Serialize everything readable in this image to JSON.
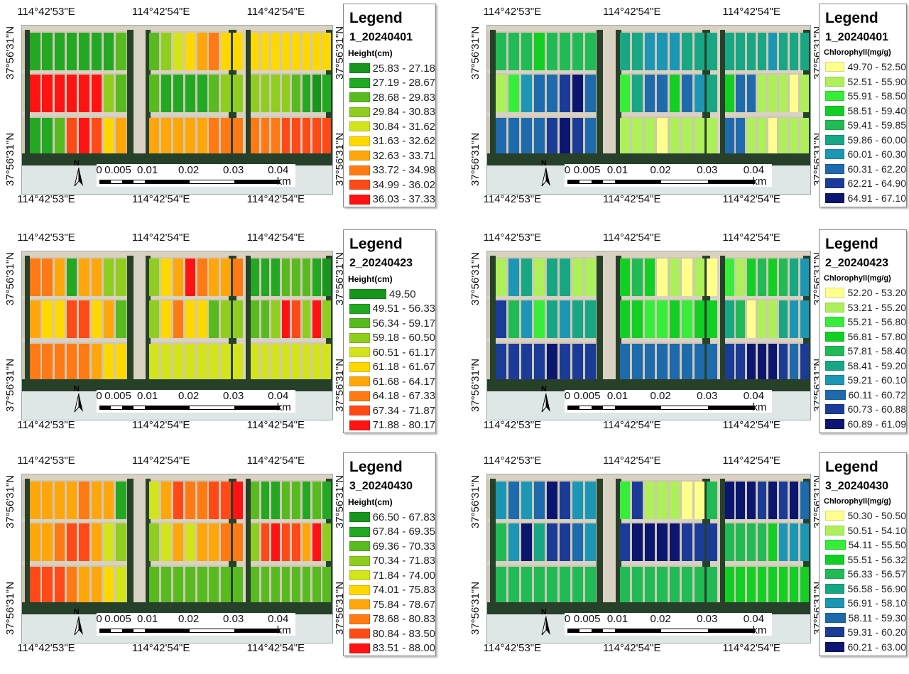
{
  "lon_labels": [
    "114°42'53\"E",
    "114°42'54\"E",
    "114°42'54\"E"
  ],
  "lat_label": "37°56'31\"N",
  "scale": {
    "labels": [
      "0",
      "0.005",
      "0.01",
      "0.02",
      "0.03",
      "0.04"
    ],
    "values": [
      0,
      0.005,
      0.01,
      0.02,
      0.03,
      0.04
    ],
    "unit": "km",
    "north": "N"
  },
  "colors": {
    "height": [
      "#17951c",
      "#22a823",
      "#57bb1f",
      "#8fce1e",
      "#d3e41a",
      "#ffd800",
      "#ffa60a",
      "#ff7a12",
      "#ff4a18",
      "#ff1212"
    ],
    "chlorophyll": [
      "#ffff8c",
      "#adf05a",
      "#36ee3a",
      "#12cf24",
      "#20bb55",
      "#17a785",
      "#1b97b5",
      "#1d6aad",
      "#1a3c98",
      "#0b1670"
    ]
  },
  "panels": [
    {
      "legend_title": "Legend",
      "date": "1_20240401",
      "variable": "Height(cm)",
      "scheme": "height",
      "classes": [
        "25.83 - 27.18",
        "27.19 - 28.67",
        "28.68 - 29.83",
        "29.84 - 30.83",
        "30.84 - 31.62",
        "31.63 - 32.62",
        "32.63 - 33.71",
        "33.72 - 34.98",
        "34.99 - 36.02",
        "36.03 - 37.33"
      ],
      "plot_classes": [
        [
          1,
          1,
          1,
          1,
          1,
          1,
          1,
          2,
          2,
          3,
          4,
          5,
          6,
          7,
          5,
          5,
          5,
          5,
          5,
          5,
          5,
          5,
          5,
          5
        ],
        [
          9,
          9,
          9,
          9,
          9,
          9,
          3,
          2,
          2,
          1,
          1,
          1,
          1,
          2,
          3,
          3,
          3,
          3,
          3,
          3,
          2,
          1,
          0,
          1
        ],
        [
          1,
          1,
          2,
          8,
          9,
          8,
          5,
          6,
          6,
          6,
          6,
          6,
          6,
          7,
          7,
          7,
          7,
          7,
          7,
          8,
          8,
          8,
          8,
          8
        ]
      ]
    },
    {
      "legend_title": "Legend",
      "date": "1_20240401",
      "variable": "Chlorophyll(mg/g)",
      "scheme": "chlorophyll",
      "classes": [
        "49.70 - 52.50",
        "52.51 - 55.90",
        "55.91 - 58.50",
        "58.51 - 59.40",
        "59.41 - 59.85",
        "59.86 - 60.00",
        "60.01 - 60.30",
        "60.31 - 62.20",
        "62.21 - 64.90",
        "64.91 - 67.10"
      ],
      "plot_classes": [
        [
          4,
          4,
          4,
          3,
          4,
          4,
          4,
          4,
          5,
          5,
          6,
          6,
          6,
          5,
          5,
          5,
          5,
          5,
          5,
          5,
          6,
          5,
          5,
          5
        ],
        [
          1,
          2,
          6,
          7,
          7,
          8,
          9,
          7,
          2,
          5,
          7,
          7,
          3,
          7,
          6,
          5,
          3,
          7,
          7,
          1,
          1,
          1,
          0,
          1
        ],
        [
          7,
          7,
          7,
          7,
          8,
          9,
          8,
          7,
          1,
          1,
          1,
          0,
          1,
          1,
          1,
          1,
          7,
          7,
          1,
          1,
          0,
          1,
          1,
          1
        ]
      ]
    },
    {
      "legend_title": "Legend",
      "date": "2_20240423",
      "variable": "Height(cm)",
      "scheme": "height",
      "classes": [
        "49.50",
        "49.51 - 56.33",
        "56.34 - 59.17",
        "59.18 - 60.50",
        "60.51 - 61.17",
        "61.18 - 61.67",
        "61.68 - 64.17",
        "64.18 - 67.33",
        "67.34 - 71.87",
        "71.88 - 80.17"
      ],
      "plot_classes": [
        [
          7,
          7,
          6,
          1,
          6,
          6,
          3,
          3,
          3,
          5,
          6,
          9,
          7,
          6,
          6,
          7,
          1,
          1,
          1,
          2,
          2,
          2,
          1,
          0
        ],
        [
          6,
          5,
          5,
          8,
          8,
          5,
          6,
          2,
          3,
          5,
          7,
          5,
          5,
          2,
          3,
          3,
          2,
          2,
          3,
          9,
          8,
          3,
          9,
          3
        ],
        [
          7,
          7,
          7,
          7,
          7,
          6,
          5,
          5,
          4,
          4,
          4,
          4,
          4,
          4,
          4,
          4,
          4,
          4,
          4,
          4,
          4,
          4,
          4,
          4
        ]
      ]
    },
    {
      "legend_title": "Legend",
      "date": "2_20240423",
      "variable": "Chlorophyll(mg/g)",
      "scheme": "chlorophyll",
      "classes": [
        "52.20 - 53.20",
        "53.21 - 55.20",
        "55.21 - 56.80",
        "56.81 - 57.80",
        "57.81 - 58.40",
        "58.41 - 59.20",
        "59.21 - 60.10",
        "60.11 - 60.72",
        "60.73 - 60.88",
        "60.89 - 61.09"
      ],
      "plot_classes": [
        [
          1,
          6,
          5,
          1,
          5,
          5,
          1,
          1,
          3,
          4,
          3,
          0,
          1,
          0,
          1,
          0,
          2,
          1,
          3,
          4,
          3,
          4,
          5,
          6
        ],
        [
          8,
          4,
          6,
          2,
          5,
          6,
          5,
          5,
          3,
          3,
          2,
          2,
          3,
          2,
          3,
          3,
          5,
          4,
          0,
          1,
          1,
          5,
          6,
          6
        ],
        [
          8,
          8,
          8,
          8,
          9,
          8,
          8,
          8,
          7,
          7,
          7,
          7,
          7,
          7,
          7,
          7,
          8,
          8,
          9,
          9,
          9,
          8,
          7,
          8
        ]
      ]
    },
    {
      "legend_title": "Legend",
      "date": "3_20240430",
      "variable": "Height(cm)",
      "scheme": "height",
      "classes": [
        "66.50 - 67.83",
        "67.84 - 69.35",
        "69.36 - 70.33",
        "70.34 - 71.83",
        "71.84 - 74.00",
        "74.01 - 75.83",
        "75.84 - 78.67",
        "78.68 - 80.83",
        "80.84 - 83.50",
        "83.51 - 88.00"
      ],
      "plot_classes": [
        [
          6,
          6,
          6,
          6,
          7,
          6,
          6,
          1,
          4,
          6,
          8,
          7,
          7,
          8,
          8,
          9,
          2,
          1,
          1,
          2,
          2,
          1,
          2,
          1
        ],
        [
          6,
          6,
          7,
          8,
          8,
          6,
          4,
          3,
          3,
          4,
          6,
          4,
          6,
          6,
          7,
          7,
          3,
          8,
          9,
          8,
          8,
          6,
          9,
          3
        ],
        [
          8,
          8,
          8,
          7,
          6,
          6,
          5,
          4,
          2,
          2,
          2,
          2,
          2,
          2,
          2,
          2,
          2,
          2,
          2,
          2,
          2,
          2,
          2,
          2
        ]
      ]
    },
    {
      "legend_title": "Legend",
      "date": "3_20240430",
      "variable": "Chlorophyll(mg/g)",
      "scheme": "chlorophyll",
      "classes": [
        "50.30 - 50.50",
        "50.51 - 54.10",
        "54.11 - 55.50",
        "55.51 - 56.32",
        "56.33 - 56.57",
        "56.58 - 56.90",
        "56.91 - 58.10",
        "58.11 - 59.30",
        "59.31 - 60.20",
        "60.21 - 63.00"
      ],
      "plot_classes": [
        [
          6,
          7,
          6,
          7,
          9,
          8,
          6,
          6,
          2,
          8,
          1,
          1,
          1,
          0,
          0,
          4,
          9,
          9,
          9,
          8,
          9,
          8,
          9,
          7
        ],
        [
          4,
          6,
          9,
          5,
          8,
          8,
          7,
          6,
          8,
          9,
          9,
          9,
          9,
          8,
          8,
          8,
          4,
          4,
          4,
          4,
          3,
          6,
          6,
          6
        ],
        [
          4,
          4,
          4,
          4,
          4,
          4,
          4,
          4,
          4,
          4,
          4,
          4,
          4,
          4,
          4,
          4,
          3,
          3,
          3,
          3,
          3,
          3,
          3,
          3
        ]
      ]
    }
  ]
}
